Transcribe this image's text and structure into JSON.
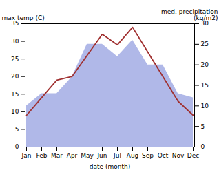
{
  "chart_data": {
    "type": "line",
    "xlabel": "date (month)",
    "ylabel": "max temp (C)",
    "y2label": "med. precipitation\n(kg/m2)",
    "categories": [
      "Jan",
      "Feb",
      "Mar",
      "Apr",
      "May",
      "Jun",
      "Jul",
      "Aug",
      "Sep",
      "Oct",
      "Nov",
      "Dec"
    ],
    "series": [
      {
        "type": "area",
        "axis": "y2",
        "color": "#b0b8e8",
        "values": [
          10,
          13,
          13,
          17,
          25,
          25,
          22,
          26,
          20,
          20,
          13,
          12
        ]
      },
      {
        "type": "line",
        "color": "#a03030",
        "values": [
          9,
          14,
          19,
          20,
          26,
          32,
          29,
          34,
          27,
          20,
          13,
          9
        ]
      }
    ],
    "ylim": [
      0,
      35
    ],
    "yticks": [
      0,
      5,
      10,
      15,
      20,
      25,
      30,
      35
    ],
    "y2lim": [
      0,
      30
    ],
    "y2ticks": [
      0,
      5,
      10,
      15,
      20,
      25,
      30
    ]
  }
}
